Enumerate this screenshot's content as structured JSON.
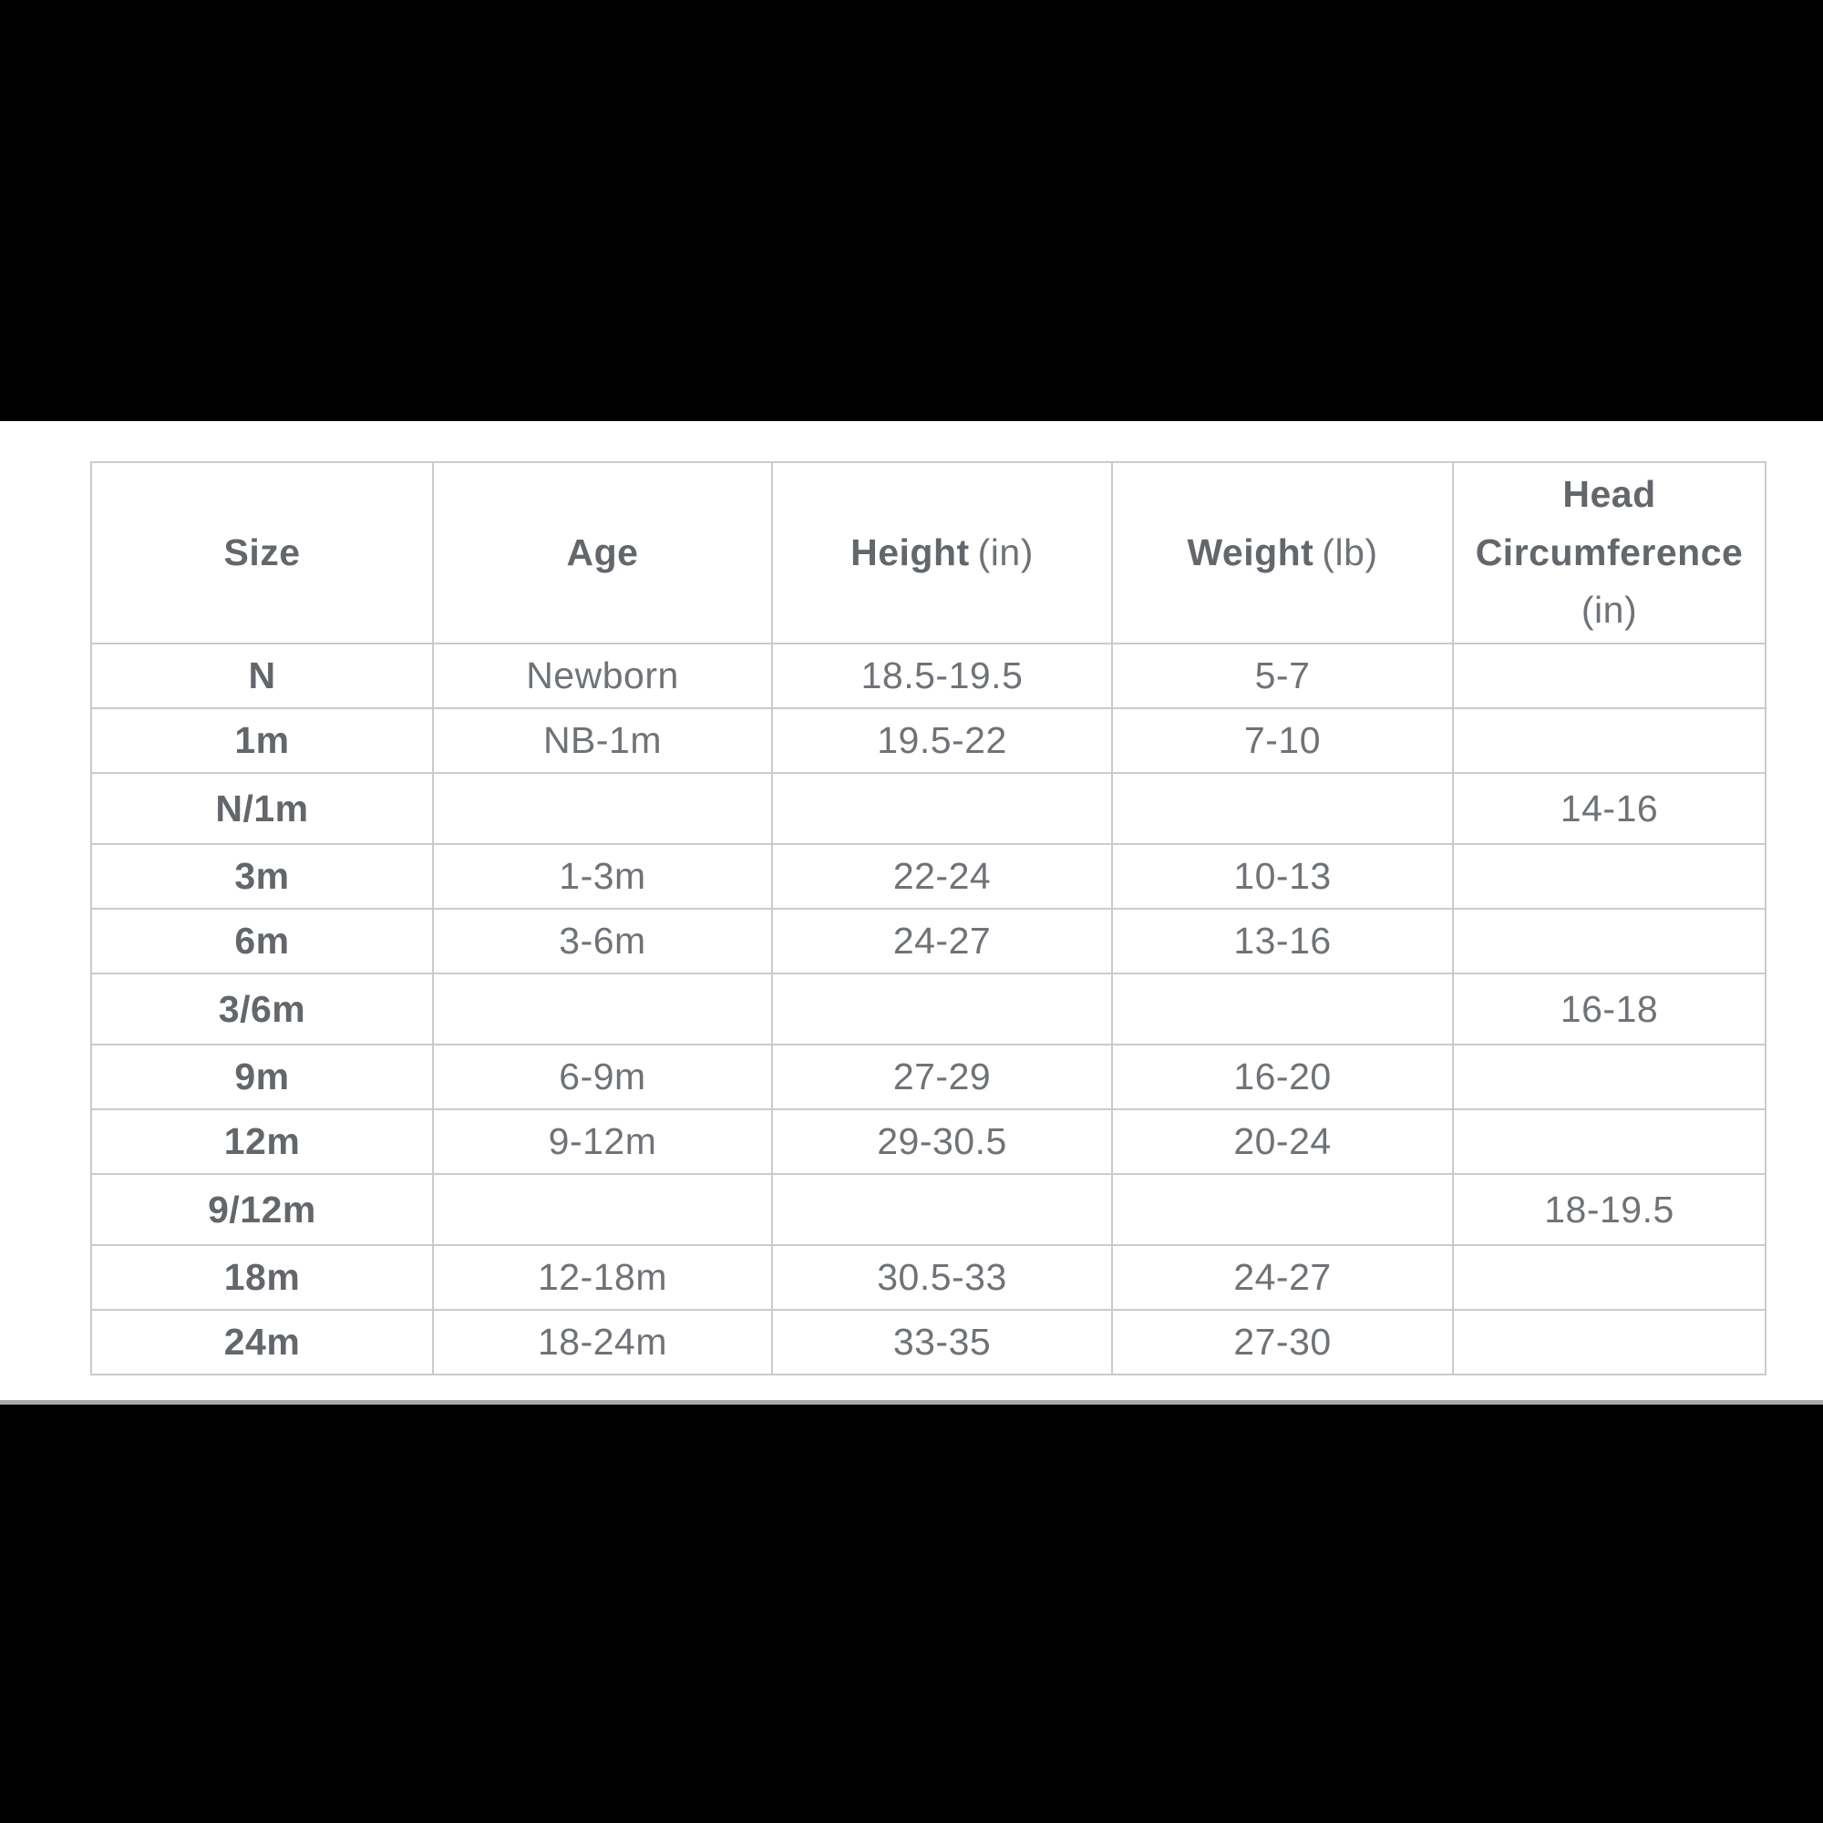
{
  "page": {
    "background_color": "#000000",
    "band_color": "#ffffff",
    "divider_color": "#a9a9a9",
    "border_color": "#cbcbcb",
    "header_text_color": "#63676b",
    "value_text_color": "#6f7377"
  },
  "table": {
    "headers": [
      {
        "label": "Size",
        "unit": ""
      },
      {
        "label": "Age",
        "unit": ""
      },
      {
        "label": "Height",
        "unit": "(in)"
      },
      {
        "label": "Weight",
        "unit": "(lb)"
      },
      {
        "label": "Head Circumference",
        "unit": "(in)"
      }
    ],
    "rows": [
      {
        "size": "N",
        "age": "Newborn",
        "height": "18.5-19.5",
        "weight": "5-7",
        "head": ""
      },
      {
        "size": "1m",
        "age": "NB-1m",
        "height": "19.5-22",
        "weight": "7-10",
        "head": ""
      },
      {
        "size": "N/1m",
        "age": "",
        "height": "",
        "weight": "",
        "head": "14-16"
      },
      {
        "size": "3m",
        "age": "1-3m",
        "height": "22-24",
        "weight": "10-13",
        "head": ""
      },
      {
        "size": "6m",
        "age": "3-6m",
        "height": "24-27",
        "weight": "13-16",
        "head": ""
      },
      {
        "size": "3/6m",
        "age": "",
        "height": "",
        "weight": "",
        "head": "16-18"
      },
      {
        "size": "9m",
        "age": "6-9m",
        "height": "27-29",
        "weight": "16-20",
        "head": ""
      },
      {
        "size": "12m",
        "age": "9-12m",
        "height": "29-30.5",
        "weight": "20-24",
        "head": ""
      },
      {
        "size": "9/12m",
        "age": "",
        "height": "",
        "weight": "",
        "head": "18-19.5"
      },
      {
        "size": "18m",
        "age": "12-18m",
        "height": "30.5-33",
        "weight": "24-27",
        "head": ""
      },
      {
        "size": "24m",
        "age": "18-24m",
        "height": "33-35",
        "weight": "27-30",
        "head": ""
      }
    ]
  }
}
